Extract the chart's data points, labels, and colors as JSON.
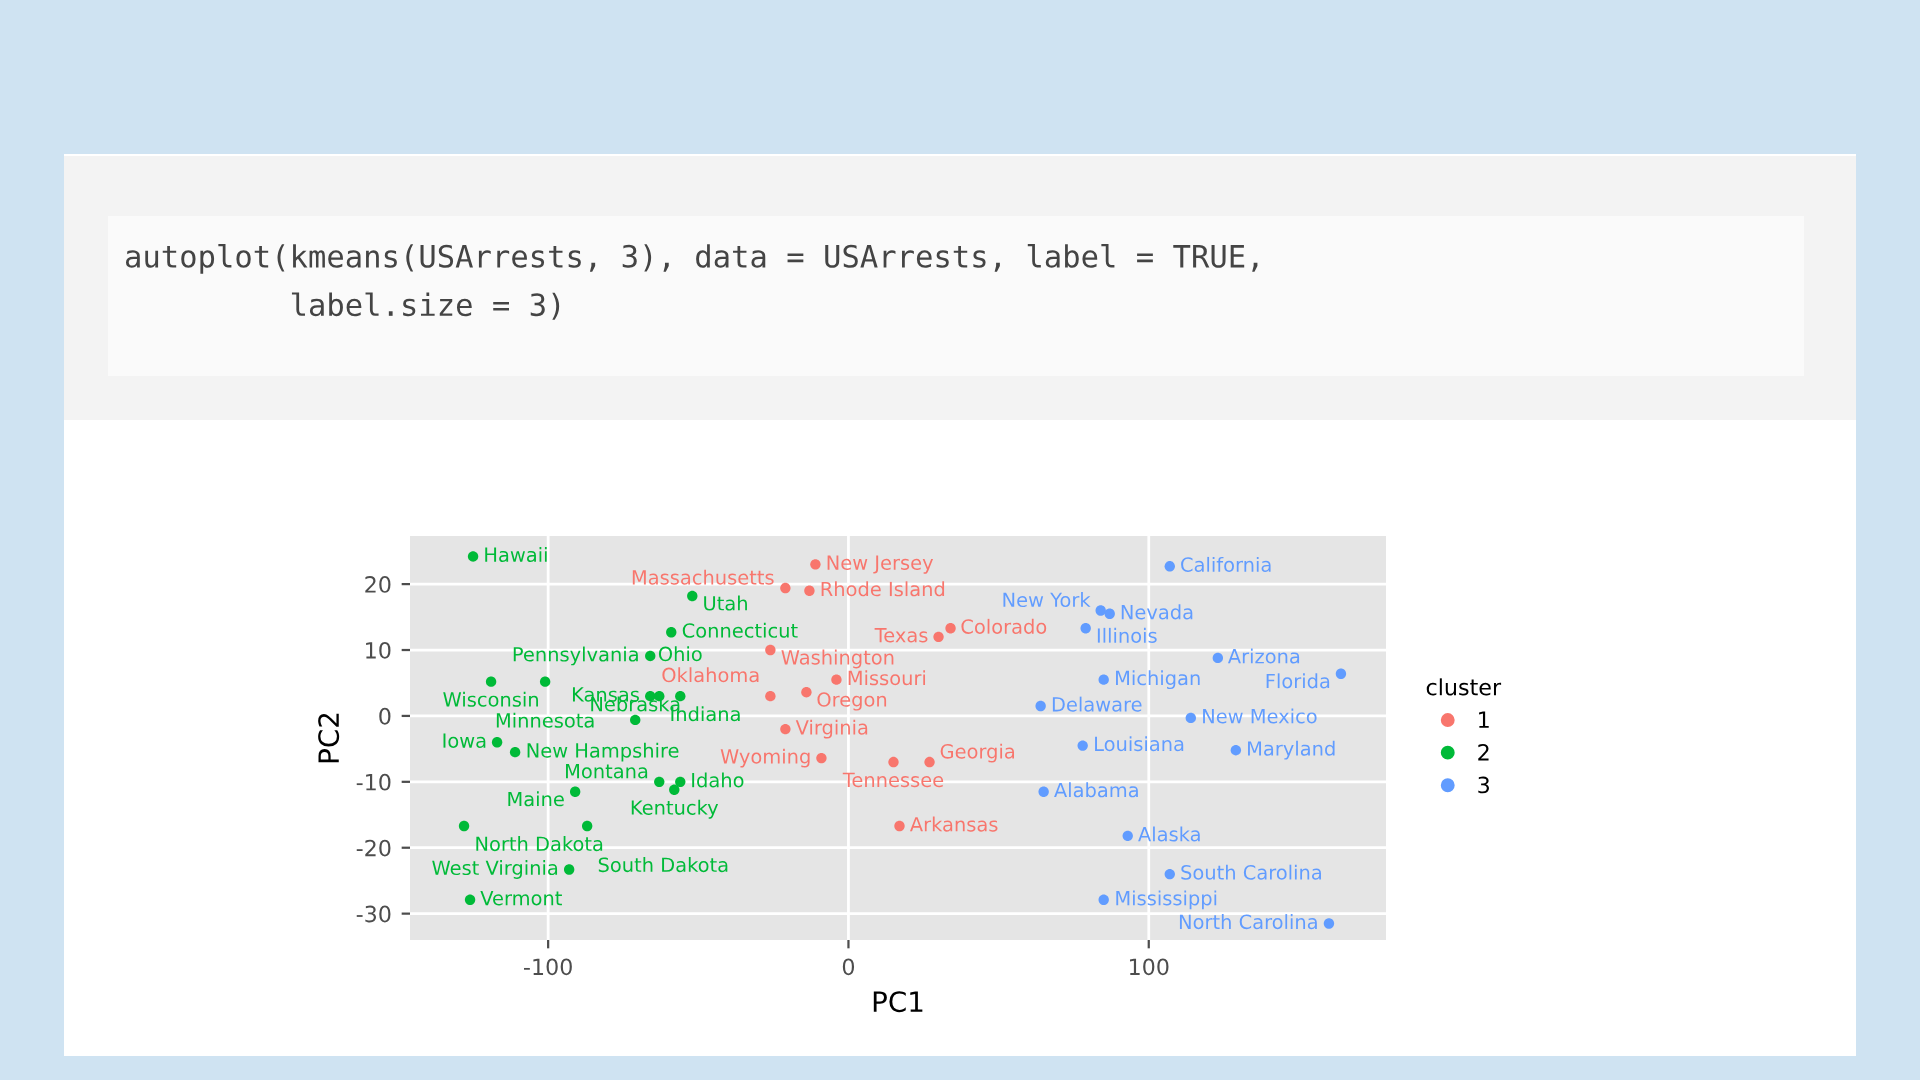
{
  "chart_data": {
    "type": "scatter",
    "xlabel": "PC1",
    "ylabel": "PC2",
    "legend_title": "cluster",
    "legend": "right",
    "grid": true,
    "marker": "circle",
    "xlim": [
      -146,
      179
    ],
    "ylim": [
      -34,
      27.3
    ],
    "xticks": [
      -100,
      0,
      100
    ],
    "yticks": [
      -30,
      -20,
      -10,
      0,
      10,
      20
    ],
    "series": [
      {
        "name": "1",
        "color": "#f8766d",
        "x": [
          -11,
          -21,
          -13,
          34,
          30,
          -26,
          -14,
          -26,
          -4,
          -21,
          -9,
          15,
          27,
          17
        ],
        "values": [
          23,
          19.4,
          19,
          13.3,
          12,
          10,
          3.6,
          3,
          5.5,
          -2,
          -6.4,
          -7,
          -7,
          -16.7
        ]
      },
      {
        "name": "2",
        "color": "#00ba38",
        "x": [
          -125,
          -52,
          -59,
          -66,
          -119,
          -101,
          -117,
          -111,
          -66,
          -63,
          -56,
          -71,
          -63,
          -56,
          -58,
          -91,
          -128,
          -87,
          -93,
          -126
        ],
        "values": [
          24.2,
          18.2,
          12.7,
          9.1,
          5.2,
          5.2,
          -4,
          -5.5,
          3,
          3,
          3,
          -0.6,
          -10,
          -10,
          -11.2,
          -11.5,
          -16.7,
          -16.7,
          -23.3,
          -27.9
        ]
      },
      {
        "name": "3",
        "color": "#619cff",
        "x": [
          107,
          84,
          87,
          79,
          123,
          164,
          85,
          64,
          114,
          78,
          129,
          65,
          93,
          107,
          85,
          160
        ],
        "values": [
          22.7,
          16,
          15.5,
          13.3,
          8.8,
          6.4,
          5.5,
          1.5,
          -0.3,
          -4.5,
          -5.2,
          -11.5,
          -18.2,
          -24,
          -27.9,
          -31.5
        ]
      }
    ],
    "annotations": [
      "autoplot(kmeans(USArrests, 3), data = USArrests, label = TRUE,\n         label.size = 3)",
      {
        "text": "New Jersey",
        "x": -11,
        "y": 23
      },
      {
        "text": "Massachusetts",
        "x": -21,
        "y": 19.4
      },
      {
        "text": "Rhode Island",
        "x": -13,
        "y": 19
      },
      {
        "text": "Colorado",
        "x": 34,
        "y": 13.3
      },
      {
        "text": "Texas",
        "x": 30,
        "y": 12
      },
      {
        "text": "Washington",
        "x": -26,
        "y": 10
      },
      {
        "text": "Oregon",
        "x": -14,
        "y": 3.6
      },
      {
        "text": "Oklahoma",
        "x": -26,
        "y": 3
      },
      {
        "text": "Missouri",
        "x": -4,
        "y": 5.5
      },
      {
        "text": "Virginia",
        "x": -21,
        "y": -2
      },
      {
        "text": "Wyoming",
        "x": -9,
        "y": -6.4
      },
      {
        "text": "Tennessee",
        "x": 15,
        "y": -7
      },
      {
        "text": "Georgia",
        "x": 27,
        "y": -7
      },
      {
        "text": "Arkansas",
        "x": 17,
        "y": -16.7
      },
      {
        "text": "Hawaii",
        "x": -125,
        "y": 24.2
      },
      {
        "text": "Utah",
        "x": -52,
        "y": 18.2
      },
      {
        "text": "Connecticut",
        "x": -59,
        "y": 12.7
      },
      {
        "text": "Pennsylvania",
        "x": -66,
        "y": 9.1
      },
      {
        "text": "Wisconsin",
        "x": -119,
        "y": 5.2
      },
      {
        "text": "Minnesota",
        "x": -101,
        "y": 5.2
      },
      {
        "text": "Iowa",
        "x": -117,
        "y": -4
      },
      {
        "text": "New Hampshire",
        "x": -111,
        "y": -5.5
      },
      {
        "text": "Kansas",
        "x": -66,
        "y": 3
      },
      {
        "text": "Indiana",
        "x": -63,
        "y": 3
      },
      {
        "text": "Ohio",
        "x": -56,
        "y": 3
      },
      {
        "text": "Nebraska",
        "x": -71,
        "y": -0.6
      },
      {
        "text": "Montana",
        "x": -63,
        "y": -10
      },
      {
        "text": "Idaho",
        "x": -56,
        "y": -10
      },
      {
        "text": "Kentucky",
        "x": -58,
        "y": -11.2
      },
      {
        "text": "Maine",
        "x": -91,
        "y": -11.5
      },
      {
        "text": "North Dakota",
        "x": -128,
        "y": -16.7
      },
      {
        "text": "South Dakota",
        "x": -87,
        "y": -16.7
      },
      {
        "text": "West Virginia",
        "x": -93,
        "y": -23.3
      },
      {
        "text": "Vermont",
        "x": -126,
        "y": -27.9
      },
      {
        "text": "California",
        "x": 107,
        "y": 22.7
      },
      {
        "text": "New York",
        "x": 84,
        "y": 16
      },
      {
        "text": "Nevada",
        "x": 87,
        "y": 15.5
      },
      {
        "text": "Illinois",
        "x": 79,
        "y": 13.3
      },
      {
        "text": "Arizona",
        "x": 123,
        "y": 8.8
      },
      {
        "text": "Florida",
        "x": 164,
        "y": 6.4
      },
      {
        "text": "Michigan",
        "x": 85,
        "y": 5.5
      },
      {
        "text": "Delaware",
        "x": 64,
        "y": 1.5
      },
      {
        "text": "New Mexico",
        "x": 114,
        "y": -0.3
      },
      {
        "text": "Louisiana",
        "x": 78,
        "y": -4.5
      },
      {
        "text": "Maryland",
        "x": 129,
        "y": -5.2
      },
      {
        "text": "Alabama",
        "x": 65,
        "y": -11.5
      },
      {
        "text": "Alaska",
        "x": 93,
        "y": -18.2
      },
      {
        "text": "South Carolina",
        "x": 107,
        "y": -24
      },
      {
        "text": "Mississippi",
        "x": 85,
        "y": -27.9
      },
      {
        "text": "North Carolina",
        "x": 160,
        "y": -31.5
      }
    ]
  }
}
